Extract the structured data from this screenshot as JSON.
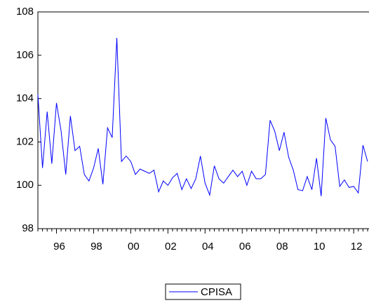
{
  "chart_data": {
    "type": "line",
    "categories": [
      null,
      null,
      null,
      null,
      "96",
      null,
      null,
      null,
      null,
      null,
      null,
      null,
      "98",
      null,
      null,
      null,
      null,
      null,
      null,
      null,
      "00",
      null,
      null,
      null,
      null,
      null,
      null,
      null,
      "02",
      null,
      null,
      null,
      null,
      null,
      null,
      null,
      "04",
      null,
      null,
      null,
      null,
      null,
      null,
      null,
      "06",
      null,
      null,
      null,
      null,
      null,
      null,
      null,
      "08",
      null,
      null,
      null,
      null,
      null,
      null,
      null,
      "10",
      null,
      null,
      null,
      null,
      null,
      null,
      null,
      "12",
      null,
      null,
      null
    ],
    "series": [
      {
        "name": "CPISA",
        "color": "#0000ff",
        "values": [
          104.2,
          100.8,
          103.4,
          101.0,
          103.8,
          102.5,
          100.5,
          103.2,
          101.6,
          101.8,
          100.5,
          100.2,
          100.8,
          101.7,
          100.05,
          102.65,
          102.2,
          106.8,
          101.1,
          101.35,
          101.1,
          100.5,
          100.75,
          100.65,
          100.55,
          100.7,
          99.7,
          100.2,
          100.0,
          100.35,
          100.55,
          99.8,
          100.3,
          99.85,
          100.3,
          101.35,
          100.1,
          99.55,
          100.9,
          100.3,
          100.1,
          100.4,
          100.7,
          100.4,
          100.65,
          100.0,
          100.65,
          100.3,
          100.3,
          100.5,
          103.0,
          102.5,
          101.6,
          102.45,
          101.3,
          100.7,
          99.8,
          99.75,
          100.4,
          99.8,
          101.25,
          99.5,
          103.1,
          102.1,
          101.8,
          99.95,
          100.25,
          99.9,
          99.95,
          99.65,
          101.85,
          101.1
        ]
      }
    ],
    "ylim": [
      98,
      108
    ],
    "yticks": [
      98,
      100,
      102,
      104,
      106,
      108
    ]
  }
}
